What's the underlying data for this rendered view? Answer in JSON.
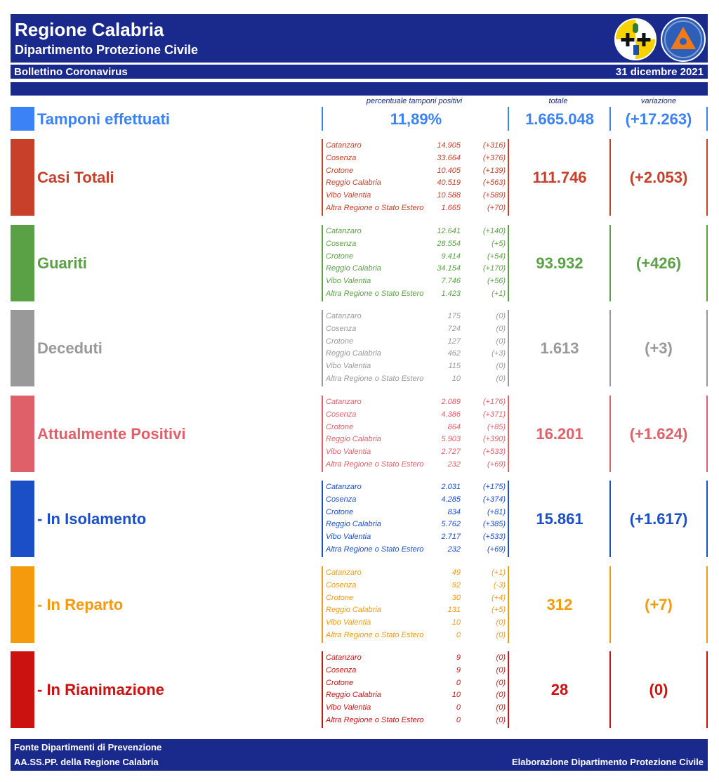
{
  "header": {
    "title": "Regione Calabria",
    "subtitle": "Dipartimento Protezione Civile",
    "bulletin": "Bollettino Coronavirus",
    "date": "31 dicembre 2021",
    "logos": [
      "regione-calabria-emblem-icon",
      "protezione-civile-logo-icon"
    ]
  },
  "columns": {
    "percent": "percentuale tamponi positivi",
    "total": "totale",
    "variation": "variazione"
  },
  "tamponi": {
    "label": "Tamponi effettuati",
    "percent": "11,89%",
    "total": "1.665.048",
    "variation": "(+17.263)",
    "color": "#3b82f6"
  },
  "sections": [
    {
      "label": "Casi Totali",
      "color": "#c8402a",
      "total": "111.746",
      "variation": "(+2.053)",
      "provinces": [
        {
          "name": "Catanzaro",
          "value": "14.905",
          "delta": "(+316)"
        },
        {
          "name": "Cosenza",
          "value": "33.664",
          "delta": "(+376)"
        },
        {
          "name": "Crotone",
          "value": "10.405",
          "delta": "(+139)"
        },
        {
          "name": "Reggio Calabria",
          "value": "40.519",
          "delta": "(+563)"
        },
        {
          "name": "Vibo Valentia",
          "value": "10.588",
          "delta": "(+589)"
        },
        {
          "name": "Altra Regione o Stato Estero",
          "value": "1.665",
          "delta": "(+70)"
        }
      ]
    },
    {
      "label": "Guariti",
      "color": "#5aa146",
      "total": "93.932",
      "variation": "(+426)",
      "provinces": [
        {
          "name": "Catanzaro",
          "value": "12.641",
          "delta": "(+140)"
        },
        {
          "name": "Cosenza",
          "value": "28.554",
          "delta": "(+5)"
        },
        {
          "name": "Crotone",
          "value": "9.414",
          "delta": "(+54)"
        },
        {
          "name": "Reggio Calabria",
          "value": "34.154",
          "delta": "(+170)"
        },
        {
          "name": "Vibo Valentia",
          "value": "7.746",
          "delta": "(+56)"
        },
        {
          "name": "Altra Regione o Stato Estero",
          "value": "1.423",
          "delta": "(+1)"
        }
      ]
    },
    {
      "label": "Deceduti",
      "color": "#999999",
      "total": "1.613",
      "variation": "(+3)",
      "provinces": [
        {
          "name": "Catanzaro",
          "value": "175",
          "delta": "(0)"
        },
        {
          "name": "Cosenza",
          "value": "724",
          "delta": "(0)"
        },
        {
          "name": "Crotone",
          "value": "127",
          "delta": "(0)"
        },
        {
          "name": "Reggio Calabria",
          "value": "462",
          "delta": "(+3)"
        },
        {
          "name": "Vibo Valentia",
          "value": "115",
          "delta": "(0)"
        },
        {
          "name": "Altra Regione o Stato Estero",
          "value": "10",
          "delta": "(0)"
        }
      ]
    },
    {
      "label": "Attualmente Positivi",
      "color": "#e0606a",
      "total": "16.201",
      "variation": "(+1.624)",
      "provinces": [
        {
          "name": "Catanzaro",
          "value": "2.089",
          "delta": "(+176)"
        },
        {
          "name": "Cosenza",
          "value": "4.386",
          "delta": "(+371)"
        },
        {
          "name": "Crotone",
          "value": "864",
          "delta": "(+85)"
        },
        {
          "name": "Reggio Calabria",
          "value": "5.903",
          "delta": "(+390)"
        },
        {
          "name": "Vibo Valentia",
          "value": "2.727",
          "delta": "(+533)"
        },
        {
          "name": "Altra Regione o Stato Estero",
          "value": "232",
          "delta": "(+69)"
        }
      ]
    },
    {
      "label": " - In Isolamento",
      "color": "#1a4fc8",
      "total": "15.861",
      "variation": "(+1.617)",
      "provinces": [
        {
          "name": "Catanzaro",
          "value": "2.031",
          "delta": "(+175)"
        },
        {
          "name": "Cosenza",
          "value": "4.285",
          "delta": "(+374)"
        },
        {
          "name": "Crotone",
          "value": "834",
          "delta": "(+81)"
        },
        {
          "name": "Reggio Calabria",
          "value": "5.762",
          "delta": "(+385)"
        },
        {
          "name": "Vibo Valentia",
          "value": "2.717",
          "delta": "(+533)"
        },
        {
          "name": "Altra Regione o Stato Estero",
          "value": "232",
          "delta": "(+69)"
        }
      ]
    },
    {
      "label": " - In Reparto",
      "color": "#f59a0c",
      "total": "312",
      "variation": "(+7)",
      "provinces": [
        {
          "name": "Catanzaro",
          "value": "49",
          "delta": "(+1)"
        },
        {
          "name": "Cosenza",
          "value": "92",
          "delta": "(-3)"
        },
        {
          "name": "Crotone",
          "value": "30",
          "delta": "(+4)"
        },
        {
          "name": "Reggio Calabria",
          "value": "131",
          "delta": "(+5)"
        },
        {
          "name": "Vibo Valentia",
          "value": "10",
          "delta": "(0)"
        },
        {
          "name": "Altra Regione o Stato Estero",
          "value": "0",
          "delta": "(0)"
        }
      ]
    },
    {
      "label": " - In Rianimazione",
      "color": "#cc1111",
      "total": "28",
      "variation": "(0)",
      "provinces": [
        {
          "name": "Catanzaro",
          "value": "9",
          "delta": "(0)"
        },
        {
          "name": "Cosenza",
          "value": "9",
          "delta": "(0)"
        },
        {
          "name": "Crotone",
          "value": "0",
          "delta": "(0)"
        },
        {
          "name": "Reggio Calabria",
          "value": "10",
          "delta": "(0)"
        },
        {
          "name": "Vibo Valentia",
          "value": "0",
          "delta": "(0)"
        },
        {
          "name": "Altra Regione o Stato Estero",
          "value": "0",
          "delta": "(0)"
        }
      ]
    }
  ],
  "footer": {
    "line1": "Fonte Dipartimenti di Prevenzione",
    "line2": "AA.SS.PP.  della Regione Calabria",
    "right": "Elaborazione Dipartimento Protezione Civile"
  }
}
